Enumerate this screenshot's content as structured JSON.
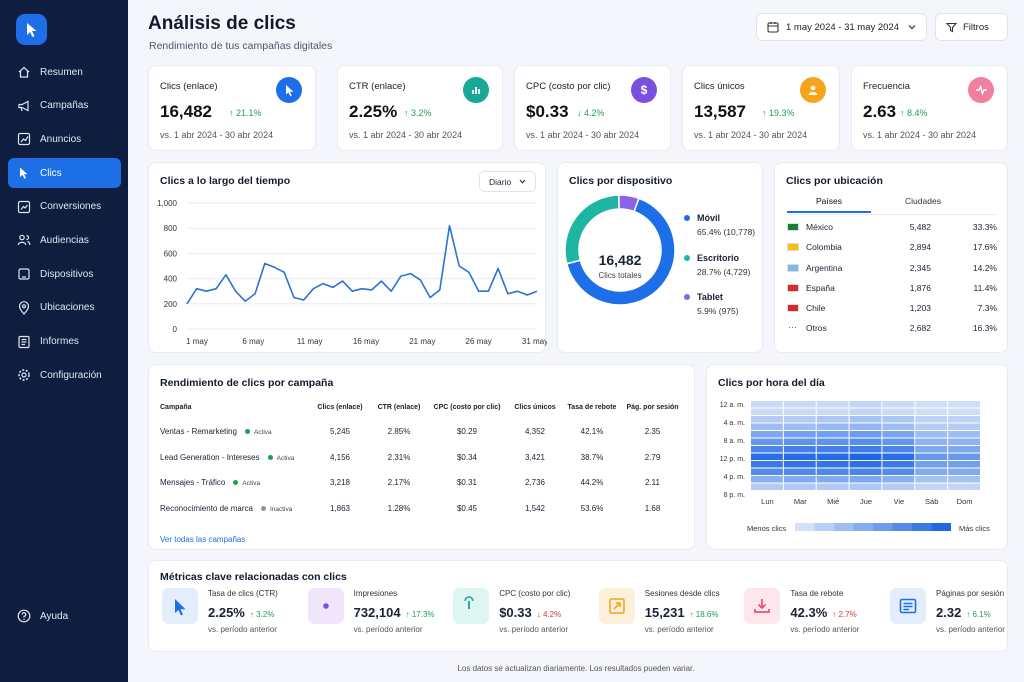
{
  "sidebar": {
    "items": [
      {
        "label": "Resumen"
      },
      {
        "label": "Campañas"
      },
      {
        "label": "Anuncios"
      },
      {
        "label": "Clics"
      },
      {
        "label": "Conversiones"
      },
      {
        "label": "Audiencias"
      },
      {
        "label": "Dispositivos"
      },
      {
        "label": "Ubicaciones"
      },
      {
        "label": "Informes"
      },
      {
        "label": "Configuración"
      }
    ],
    "help": "Ayuda"
  },
  "header": {
    "title": "Análisis de clics",
    "subtitle": "Rendimiento de tus campañas digitales",
    "date_range": "1 may 2024 - 31 may 2024",
    "filters": "Filtros"
  },
  "kpis": [
    {
      "title": "Clics (enlace)",
      "value": "16,482",
      "delta": "↑ 21.1%",
      "compare": "vs. 1 abr 2024 - 30 abr 2024",
      "color": "#1d6fe8"
    },
    {
      "title": "CTR (enlace)",
      "value": "2.25%",
      "delta": "↑ 3.2%",
      "compare": "vs. 1 abr 2024 - 30 abr 2024",
      "color": "#19a79a"
    },
    {
      "title": "CPC (costo por clic)",
      "value": "$0.33",
      "delta": "↓ 4.2%",
      "compare": "vs. 1 abr 2024 - 30 abr 2024",
      "color": "#7b4fe0"
    },
    {
      "title": "Clics únicos",
      "value": "13,587",
      "delta": "↑ 19.3%",
      "compare": "vs. 1 abr 2024 - 30 abr 2024",
      "color": "#f5a41c"
    },
    {
      "title": "Frecuencia",
      "value": "2.63",
      "delta": "↑ 8.4%",
      "compare": "vs. 1 abr 2024 - 30 abr 2024",
      "color": "#e9517e"
    }
  ],
  "timeline": {
    "title": "Clics a lo largo del tiempo",
    "granularity": "Diario"
  },
  "device": {
    "title": "Clics por dispositivo",
    "total": "16,482",
    "total_label": "Clics totales",
    "legend": [
      {
        "name": "Móvil",
        "detail": "65.4% (10,778)"
      },
      {
        "name": "Escritorio",
        "detail": "28.7% (4,729)"
      },
      {
        "name": "Tablet",
        "detail": "5.9% (975)"
      }
    ]
  },
  "location": {
    "title": "Clics por ubicación",
    "tabs": [
      "Países",
      "Ciudades"
    ],
    "rows": [
      {
        "country": "México",
        "clicks": "5,482",
        "share": "33.3%"
      },
      {
        "country": "Colombia",
        "clicks": "2,894",
        "share": "17.6%"
      },
      {
        "country": "Argentina",
        "clicks": "2,345",
        "share": "14.2%"
      },
      {
        "country": "España",
        "clicks": "1,876",
        "share": "11.4%"
      },
      {
        "country": "Chile",
        "clicks": "1,203",
        "share": "7.3%"
      },
      {
        "country": "Otros",
        "clicks": "2,682",
        "share": "16.3%"
      }
    ]
  },
  "campaigns": {
    "title": "Rendimiento de clics por campaña",
    "columns": [
      "Campaña",
      "Clics (enlace)",
      "CTR (enlace)",
      "CPC (costo por clic)",
      "Clics únicos",
      "Tasa de rebote",
      "Pág. por sesión"
    ],
    "rows": [
      {
        "name": "Ventas - Remarketing",
        "status": "Activa",
        "clicks": "5,245",
        "ctr": "2.85%",
        "cpc": "$0.29",
        "unique": "4,352",
        "bounce": "42.1%",
        "pages": "2.35"
      },
      {
        "name": "Lead Generation - Intereses",
        "status": "Activa",
        "clicks": "4,156",
        "ctr": "2.31%",
        "cpc": "$0.34",
        "unique": "3,421",
        "bounce": "38.7%",
        "pages": "2.79"
      },
      {
        "name": "Mensajes - Tráfico",
        "status": "Activa",
        "clicks": "3,218",
        "ctr": "2.17%",
        "cpc": "$0.31",
        "unique": "2,736",
        "bounce": "44.2%",
        "pages": "2.11"
      },
      {
        "name": "Reconocimiento de marca",
        "status": "Inactiva",
        "clicks": "1,863",
        "ctr": "1.28%",
        "cpc": "$0.45",
        "unique": "1,542",
        "bounce": "53.6%",
        "pages": "1.68"
      }
    ],
    "view_all": "Ver todas las campañas"
  },
  "heatmap": {
    "title": "Clics por hora del día",
    "legend_low": "Menos clics",
    "legend_high": "Más clics"
  },
  "metrics": {
    "title": "Métricas clave relacionadas con clics",
    "items": [
      {
        "name": "Tasa de clics (CTR)",
        "value": "2.25%",
        "delta": "↑ 3.2%",
        "compare": "vs. período anterior",
        "icon": "cursor-icon"
      },
      {
        "name": "Impresiones",
        "value": "732,104",
        "delta": "↑ 17.3%",
        "compare": "vs. período anterior",
        "icon": "eye-icon"
      },
      {
        "name": "CPC (costo por clic)",
        "value": "$0.33",
        "delta": "↓ 4.2%",
        "compare": "vs. período anterior",
        "icon": "tap-icon"
      },
      {
        "name": "Sesiones desde clics",
        "value": "15,231",
        "delta": "↑ 18.6%",
        "compare": "vs. período anterior",
        "icon": "arrow-box-icon"
      },
      {
        "name": "Tasa de rebote",
        "value": "42.3%",
        "delta": "↑ 2.7%",
        "compare": "vs. período anterior",
        "icon": "download-icon"
      },
      {
        "name": "Páginas por sesión",
        "value": "2.32",
        "delta": "↑ 6.1%",
        "compare": "vs. período anterior",
        "icon": "page-icon"
      }
    ]
  },
  "footer": "Los datos se actualizan diariamente. Los resultados pueden variar.",
  "chart_data": [
    {
      "type": "line",
      "x_tick_labels": [
        "1 may",
        "6 may",
        "11 may",
        "16 may",
        "21 may",
        "26 may",
        "31 may"
      ],
      "y_tick_labels": [
        "0",
        "200",
        "400",
        "600",
        "800",
        "1,000"
      ],
      "ylim": [
        0,
        1000
      ],
      "grid": true,
      "series": [
        {
          "values": [
            200,
            320,
            300,
            320,
            430,
            300,
            220,
            280,
            520,
            490,
            450,
            250,
            230,
            320,
            360,
            330,
            380,
            300,
            320,
            310,
            380,
            300,
            420,
            440,
            390,
            250,
            310,
            820,
            500,
            450,
            300,
            300,
            480,
            280,
            300,
            270,
            300
          ]
        }
      ]
    },
    {
      "type": "pie",
      "donut": true,
      "slices": [
        {
          "label": "Móvil",
          "value": 65.4,
          "color": "#1d6fe8"
        },
        {
          "label": "Escritorio",
          "value": 28.7,
          "color": "#1fb5a3"
        },
        {
          "label": "Tablet",
          "value": 5.9,
          "color": "#8a63e6"
        }
      ]
    },
    {
      "type": "heatmap",
      "rows": [
        "12 a. m.",
        "4 a. m.",
        "8 a. m.",
        "12 p. m.",
        "4 p. m.",
        "8 p. m."
      ],
      "columns": [
        "Lun",
        "Mar",
        "Mié",
        "Jue",
        "Vie",
        "Sáb",
        "Dom"
      ],
      "values": [
        [
          0.15,
          0.15,
          0.15,
          0.18,
          0.15,
          0.12,
          0.12
        ],
        [
          0.15,
          0.15,
          0.15,
          0.18,
          0.15,
          0.12,
          0.12
        ],
        [
          0.25,
          0.25,
          0.28,
          0.3,
          0.28,
          0.2,
          0.2
        ],
        [
          0.35,
          0.35,
          0.38,
          0.4,
          0.35,
          0.25,
          0.25
        ],
        [
          0.5,
          0.55,
          0.55,
          0.58,
          0.52,
          0.35,
          0.35
        ],
        [
          0.62,
          0.65,
          0.65,
          0.68,
          0.62,
          0.42,
          0.42
        ],
        [
          0.75,
          0.78,
          0.78,
          0.8,
          0.75,
          0.5,
          0.5
        ],
        [
          0.9,
          0.92,
          0.92,
          0.95,
          0.9,
          0.6,
          0.6
        ],
        [
          0.82,
          0.85,
          0.85,
          0.88,
          0.82,
          0.55,
          0.55
        ],
        [
          0.7,
          0.72,
          0.72,
          0.75,
          0.7,
          0.48,
          0.48
        ],
        [
          0.45,
          0.48,
          0.48,
          0.5,
          0.45,
          0.32,
          0.32
        ],
        [
          0.25,
          0.26,
          0.26,
          0.28,
          0.25,
          0.18,
          0.18
        ]
      ]
    }
  ]
}
